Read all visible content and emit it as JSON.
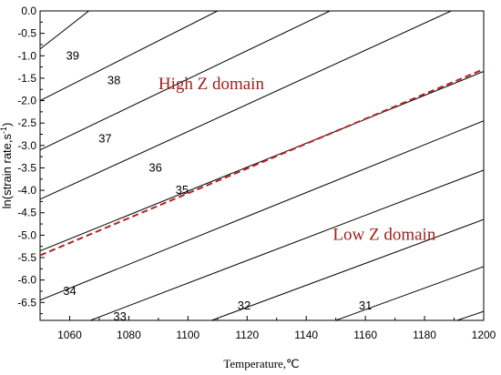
{
  "chart_data": {
    "type": "line",
    "title": "",
    "xlabel": "Temperature,℃",
    "ylabel_main": "ln(strain rate,s",
    "ylabel_sup": "-1",
    "ylabel_tail": ")",
    "xlim": [
      1050,
      1200
    ],
    "ylim": [
      -6.9,
      0.0
    ],
    "x_ticks": [
      1060,
      1080,
      1100,
      1120,
      1140,
      1160,
      1180,
      1200
    ],
    "x_tick_labels": [
      "1060",
      "1080",
      "1100",
      "1120",
      "1140",
      "1160",
      "1180",
      "1200"
    ],
    "y_ticks": [
      0.0,
      -0.5,
      -1.0,
      -1.5,
      -2.0,
      -2.5,
      -3.0,
      -3.5,
      -4.0,
      -4.5,
      -5.0,
      -5.5,
      -6.0,
      -6.5
    ],
    "y_tick_labels": [
      "0.0",
      "-0.5",
      "-1.0",
      "-1.5",
      "-2.0",
      "-2.5",
      "-3.0",
      "-3.5",
      "-4.0",
      "-4.5",
      "-5.0",
      "-5.5",
      "-6.0",
      "-6.5"
    ],
    "grid": false,
    "contours": [
      {
        "label": "39",
        "x": [
          1050,
          1066.5
        ],
        "y": [
          -0.85,
          0.0
        ],
        "label_at": [
          1061,
          -1.0
        ]
      },
      {
        "label": "38",
        "x": [
          1050,
          1110
        ],
        "y": [
          -2.0,
          0.0
        ],
        "label_at": [
          1075,
          -1.55
        ]
      },
      {
        "label": "37",
        "x": [
          1050,
          1148
        ],
        "y": [
          -3.1,
          0.0
        ],
        "label_at": [
          1072,
          -2.85
        ]
      },
      {
        "label": "36",
        "x": [
          1050,
          1189
        ],
        "y": [
          -4.2,
          0.0
        ],
        "label_at": [
          1089,
          -3.5
        ]
      },
      {
        "label": "35",
        "x": [
          1050,
          1200
        ],
        "y": [
          -5.35,
          -1.35
        ],
        "label_at": [
          1098,
          -4.0
        ]
      },
      {
        "label": "",
        "x": [
          1050,
          1200
        ],
        "y": [
          -6.45,
          -2.45
        ],
        "label_at": null
      },
      {
        "label": "34",
        "x": [
          1067,
          1200
        ],
        "y": [
          -6.9,
          -3.55
        ],
        "label_at": [
          1060,
          -6.25
        ]
      },
      {
        "label": "",
        "x": [
          1108,
          1200
        ],
        "y": [
          -6.9,
          -4.65
        ],
        "label_at": null
      },
      {
        "label": "33",
        "x": [
          1050,
          1200
        ],
        "y": [
          -6.9,
          -6.9
        ],
        "label_at": [
          1077,
          -6.82
        ]
      },
      {
        "label": "32",
        "x": [
          1150,
          1200
        ],
        "y": [
          -6.9,
          -5.7
        ],
        "label_at": [
          1119,
          -6.58
        ]
      },
      {
        "label": "31",
        "x": [
          1191,
          1200
        ],
        "y": [
          -6.9,
          -6.7
        ],
        "label_at": [
          1160,
          -6.58
        ]
      }
    ],
    "boundary": {
      "x": [
        1050,
        1200
      ],
      "y": [
        -5.45,
        -1.3
      ],
      "style": "dashed",
      "color": "#b22222"
    },
    "annotations": [
      {
        "text": "High Z domain",
        "x": 1090,
        "y": -1.75,
        "color": "#a02020"
      },
      {
        "text": "Low Z domain",
        "x": 1149,
        "y": -5.1,
        "color": "#a02020"
      }
    ]
  }
}
